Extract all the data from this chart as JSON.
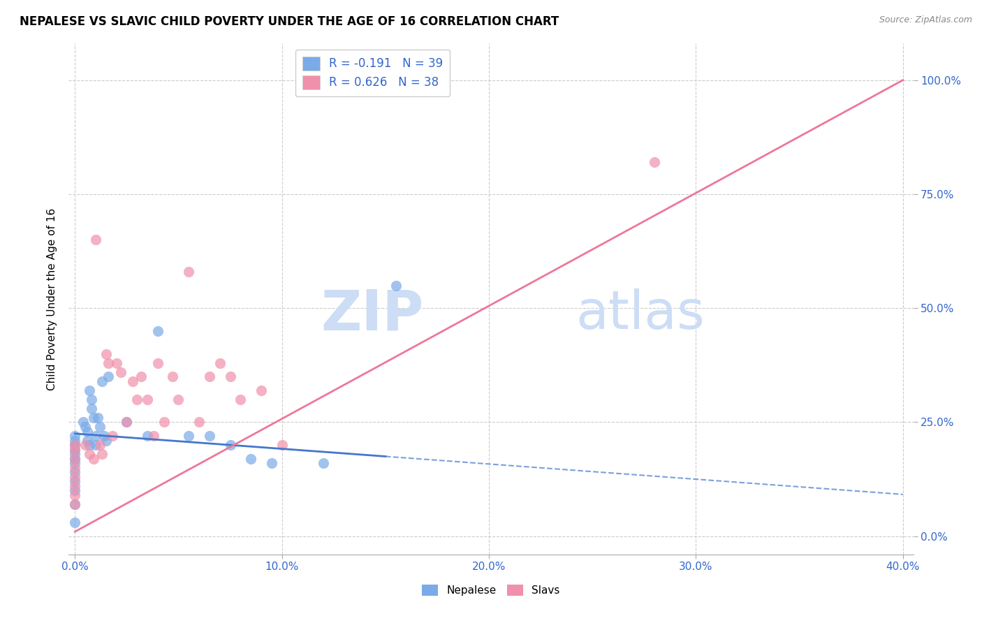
{
  "title": "NEPALESE VS SLAVIC CHILD POVERTY UNDER THE AGE OF 16 CORRELATION CHART",
  "source": "Source: ZipAtlas.com",
  "ylabel": "Child Poverty Under the Age of 16",
  "xlim": [
    -0.003,
    0.405
  ],
  "ylim": [
    -0.04,
    1.08
  ],
  "x_tick_vals": [
    0.0,
    0.1,
    0.2,
    0.3,
    0.4
  ],
  "x_tick_labels": [
    "0.0%",
    "10.0%",
    "20.0%",
    "30.0%",
    "40.0%"
  ],
  "y_tick_vals": [
    0.0,
    0.25,
    0.5,
    0.75,
    1.0
  ],
  "y_tick_labels": [
    "0.0%",
    "25.0%",
    "50.0%",
    "75.0%",
    "100.0%"
  ],
  "nepalese_color": "#7aaae8",
  "slavic_color": "#f090aa",
  "nepalese_line_color": "#4477cc",
  "slavic_line_color": "#ee7799",
  "nepalese_R": -0.191,
  "nepalese_N": 39,
  "slavic_R": 0.626,
  "slavic_N": 38,
  "label_color": "#3366cc",
  "grid_color": "#cccccc",
  "background_color": "#ffffff",
  "nepalese_x": [
    0.0,
    0.0,
    0.0,
    0.0,
    0.0,
    0.0,
    0.0,
    0.0,
    0.0,
    0.0,
    0.0,
    0.0,
    0.004,
    0.005,
    0.006,
    0.006,
    0.007,
    0.007,
    0.008,
    0.008,
    0.009,
    0.01,
    0.01,
    0.011,
    0.012,
    0.013,
    0.014,
    0.015,
    0.016,
    0.025,
    0.035,
    0.04,
    0.055,
    0.065,
    0.075,
    0.085,
    0.095,
    0.12,
    0.155
  ],
  "nepalese_y": [
    0.22,
    0.21,
    0.2,
    0.19,
    0.18,
    0.17,
    0.16,
    0.14,
    0.12,
    0.1,
    0.07,
    0.03,
    0.25,
    0.24,
    0.23,
    0.21,
    0.2,
    0.32,
    0.3,
    0.28,
    0.26,
    0.22,
    0.2,
    0.26,
    0.24,
    0.34,
    0.22,
    0.21,
    0.35,
    0.25,
    0.22,
    0.45,
    0.22,
    0.22,
    0.2,
    0.17,
    0.16,
    0.16,
    0.55
  ],
  "slavic_x": [
    0.0,
    0.0,
    0.0,
    0.0,
    0.0,
    0.0,
    0.0,
    0.0,
    0.005,
    0.007,
    0.009,
    0.01,
    0.012,
    0.013,
    0.015,
    0.016,
    0.018,
    0.02,
    0.022,
    0.025,
    0.028,
    0.03,
    0.032,
    0.035,
    0.038,
    0.04,
    0.043,
    0.047,
    0.05,
    0.055,
    0.06,
    0.065,
    0.07,
    0.075,
    0.08,
    0.09,
    0.1,
    0.28
  ],
  "slavic_y": [
    0.2,
    0.19,
    0.17,
    0.15,
    0.13,
    0.11,
    0.09,
    0.07,
    0.2,
    0.18,
    0.17,
    0.65,
    0.2,
    0.18,
    0.4,
    0.38,
    0.22,
    0.38,
    0.36,
    0.25,
    0.34,
    0.3,
    0.35,
    0.3,
    0.22,
    0.38,
    0.25,
    0.35,
    0.3,
    0.58,
    0.25,
    0.35,
    0.38,
    0.35,
    0.3,
    0.32,
    0.2,
    0.82
  ],
  "nep_line_x0": 0.0,
  "nep_line_y0": 0.225,
  "nep_line_x1": 0.15,
  "nep_line_y1": 0.175,
  "nep_line_xdash0": 0.15,
  "nep_line_ydash0": 0.175,
  "nep_line_xdash1": 0.4,
  "nep_line_ydash1": 0.09,
  "slav_line_x0": 0.0,
  "slav_line_y0": 0.01,
  "slav_line_x1": 0.4,
  "slav_line_y1": 1.0
}
